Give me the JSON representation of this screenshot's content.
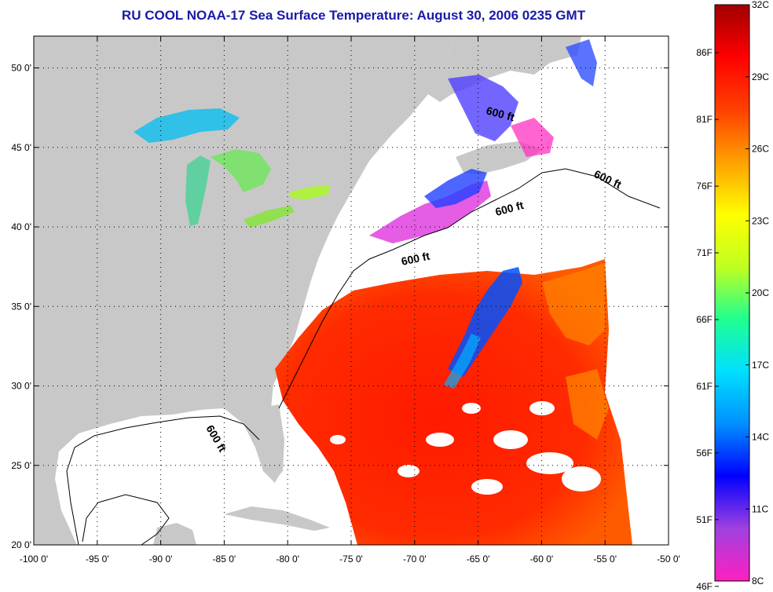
{
  "title": "RU COOL  NOAA-17  Sea Surface Temperature:  August 30, 2006 0235 GMT",
  "map": {
    "lon_range": [
      -100,
      -50
    ],
    "lat_range": [
      20,
      52
    ],
    "lon_ticks": [
      {
        "value": -100,
        "label": "-100 0'"
      },
      {
        "value": -95,
        "label": "-95 0'"
      },
      {
        "value": -90,
        "label": "-90 0'"
      },
      {
        "value": -85,
        "label": "-85 0'"
      },
      {
        "value": -80,
        "label": "-80 0'"
      },
      {
        "value": -75,
        "label": "-75 0'"
      },
      {
        "value": -70,
        "label": "-70 0'"
      },
      {
        "value": -65,
        "label": "-65 0'"
      },
      {
        "value": -60,
        "label": "-60 0'"
      },
      {
        "value": -55,
        "label": "-55 0'"
      },
      {
        "value": -50,
        "label": "-50 0'"
      }
    ],
    "lat_ticks": [
      {
        "value": 20,
        "label": "20 0'"
      },
      {
        "value": 25,
        "label": "25 0'"
      },
      {
        "value": 30,
        "label": "30 0'"
      },
      {
        "value": 35,
        "label": "35 0'"
      },
      {
        "value": 40,
        "label": "40 0'"
      },
      {
        "value": 45,
        "label": "45 0'"
      },
      {
        "value": 50,
        "label": "50 0'"
      }
    ],
    "contour_label": "600 ft",
    "colors": {
      "land": "#c8c8c8",
      "nodata": "#ffffff",
      "grid": "#000000"
    }
  },
  "colorbar": {
    "celsius_range": [
      8,
      32
    ],
    "celsius_ticks": [
      {
        "value": 32,
        "label": "32C"
      },
      {
        "value": 29,
        "label": "29C"
      },
      {
        "value": 26,
        "label": "26C"
      },
      {
        "value": 23,
        "label": "23C"
      },
      {
        "value": 20,
        "label": "20C"
      },
      {
        "value": 17,
        "label": "17C"
      },
      {
        "value": 14,
        "label": "14C"
      },
      {
        "value": 11,
        "label": "11C"
      },
      {
        "value": 8,
        "label": "8C"
      }
    ],
    "fahrenheit_ticks": [
      {
        "value": 86,
        "label": "86F"
      },
      {
        "value": 81,
        "label": "81F"
      },
      {
        "value": 76,
        "label": "76F"
      },
      {
        "value": 71,
        "label": "71F"
      },
      {
        "value": 66,
        "label": "66F"
      },
      {
        "value": 61,
        "label": "61F"
      },
      {
        "value": 56,
        "label": "56F"
      },
      {
        "value": 51,
        "label": "51F"
      },
      {
        "value": 46,
        "label": "46F"
      }
    ],
    "stops": [
      "#ff20c0",
      "#a040e0",
      "#0000ff",
      "#0090ff",
      "#00e0ff",
      "#20ff90",
      "#c0ff20",
      "#ffff00",
      "#ffa000",
      "#ff4000",
      "#ff0000",
      "#a00000"
    ]
  }
}
